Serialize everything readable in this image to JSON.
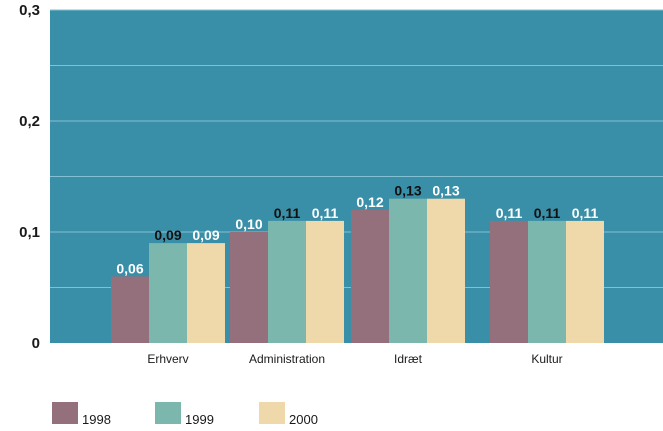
{
  "chart_data": {
    "type": "bar",
    "categories": [
      "Erhverv",
      "Administration",
      "Idræt",
      "Kultur"
    ],
    "series": [
      {
        "name": "1998",
        "values": [
          0.06,
          0.1,
          0.12,
          0.11
        ],
        "labels": [
          "0,06",
          "0,10",
          "0,12",
          "0,11"
        ],
        "color": "#93707c",
        "label_color": "#ffffff"
      },
      {
        "name": "1999",
        "values": [
          0.09,
          0.11,
          0.13,
          0.11
        ],
        "labels": [
          "0,09",
          "0,11",
          "0,13",
          "0,11"
        ],
        "color": "#7bb7ad",
        "label_color": "#111111"
      },
      {
        "name": "2000",
        "values": [
          0.09,
          0.11,
          0.13,
          0.11
        ],
        "labels": [
          "0,09",
          "0,11",
          "0,13",
          "0,11"
        ],
        "color": "#efd8a9",
        "label_color": "#ffffff"
      }
    ],
    "y_ticks": [
      {
        "value": 0,
        "label": "0"
      },
      {
        "value": 0.1,
        "label": "0,1"
      },
      {
        "value": 0.2,
        "label": "0,2"
      },
      {
        "value": 0.3,
        "label": "0,3"
      }
    ],
    "ylim": [
      0,
      0.3
    ],
    "title": "",
    "xlabel": "",
    "ylabel": "",
    "grid": true,
    "legend_position": "bottom-left",
    "plot_background": "#3a8fa8",
    "grid_color": "#82c0d2"
  }
}
